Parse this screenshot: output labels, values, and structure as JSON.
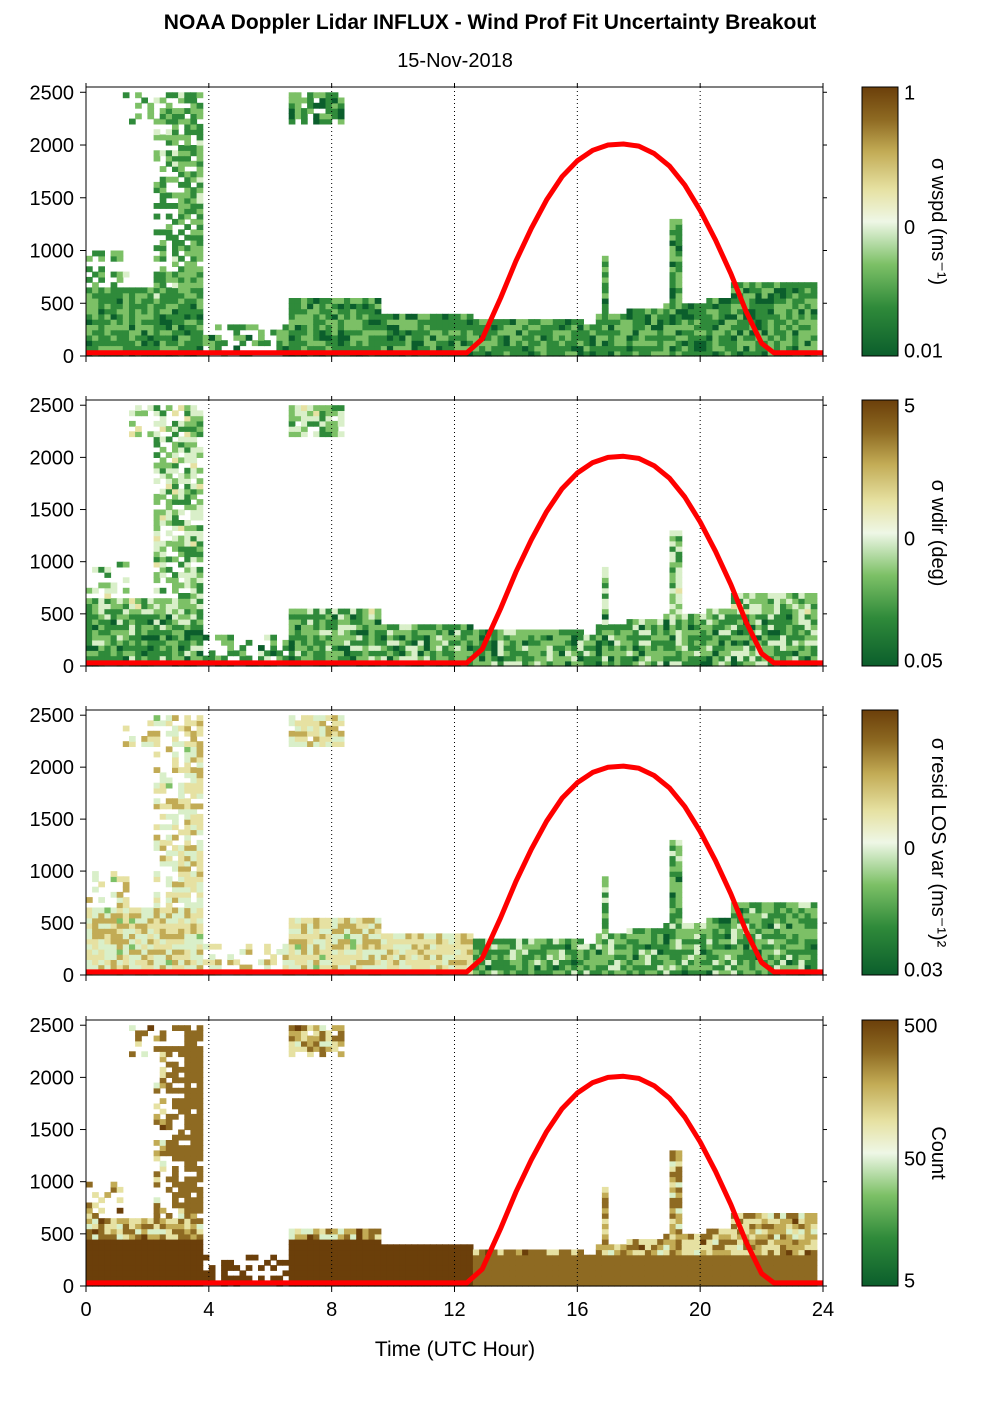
{
  "title": "NOAA Doppler Lidar INFLUX - Wind Prof Fit Uncertainty Breakout",
  "subtitle": "15-Nov-2018",
  "colors": {
    "sun_curve": "#ff0000",
    "colormap": [
      "#0b5e2c",
      "#2f8a3a",
      "#7cc066",
      "#d9efc9",
      "#e6e1a2",
      "#c2ab55",
      "#8e6a22",
      "#6b3f0a"
    ]
  },
  "chart_data": {
    "type": "heatmap",
    "x": {
      "label": "Time (UTC Hour)",
      "range": [
        0,
        24
      ],
      "ticks": [
        0,
        4,
        8,
        12,
        16,
        20,
        24
      ],
      "grid": "dotted-vertical"
    },
    "y": {
      "range": [
        0,
        2550
      ],
      "ticks": [
        0,
        500,
        1000,
        1500,
        2000,
        2500
      ]
    },
    "solar_elevation_curve": {
      "color": "#ff0000",
      "x": [
        0,
        12.4,
        12.9,
        13.5,
        14,
        14.5,
        15,
        15.5,
        16,
        16.5,
        17,
        17.5,
        18,
        18.5,
        19,
        19.5,
        20,
        20.5,
        21,
        21.5,
        22,
        22.4,
        24
      ],
      "y": [
        30,
        30,
        160,
        550,
        900,
        1210,
        1480,
        1700,
        1850,
        1950,
        2000,
        2010,
        1990,
        1920,
        1800,
        1620,
        1380,
        1100,
        780,
        420,
        120,
        30,
        30
      ]
    },
    "panels": [
      {
        "colorbar_label": "σ wspd (ms⁻¹)",
        "colorbar_ticks": [
          "1",
          "0",
          "0.01"
        ],
        "scale": "log"
      },
      {
        "colorbar_label": "σ wdir (deg)",
        "colorbar_ticks": [
          "5",
          "0",
          "0.05"
        ],
        "scale": "log"
      },
      {
        "colorbar_label": "σ resid LOS var (ms⁻¹)²",
        "colorbar_ticks": [
          "0",
          "0.03"
        ],
        "scale": "log"
      },
      {
        "colorbar_label": "Count",
        "colorbar_ticks": [
          "500",
          "50",
          "5"
        ],
        "scale": "log"
      }
    ]
  }
}
